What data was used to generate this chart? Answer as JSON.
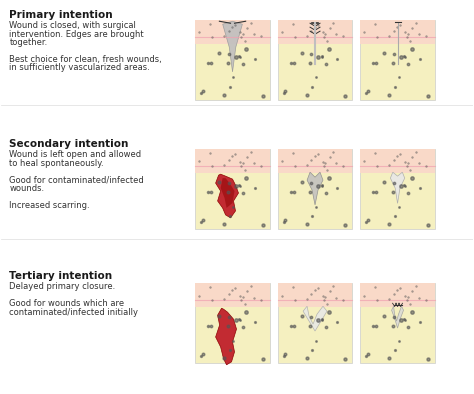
{
  "bg_color": "#ffffff",
  "skin_top_color": "#f9d9c8",
  "skin_mid_color": "#f5c4b0",
  "skin_pink_line": "#f0a0b0",
  "fat_color": "#f5f0c0",
  "dot_color": "#555555",
  "wound_red": "#c0202a",
  "wound_dark_red": "#8b0000",
  "wound_gray": "#c0bfbf",
  "wound_white": "#e8e8e8",
  "stitch_color": "#333333",
  "scar_color": "#d0d0d0",
  "sections": [
    {
      "title": "Primary intention",
      "title_bold": true,
      "lines": [
        "Wound is closed, with surgical",
        "intervention. Edges are brought",
        "together.",
        "",
        "Best choice for clean, fresh wounds,",
        "in sufficiently vascularized areas."
      ]
    },
    {
      "title": "Secondary intention",
      "title_bold": true,
      "lines": [
        "Wound is left open and allowed",
        "to heal spontaneously.",
        "",
        "Good for contaminated/infected",
        "wounds.",
        "",
        "Increased scarring."
      ]
    },
    {
      "title": "Tertiary intention",
      "title_bold": true,
      "lines": [
        "Delayed primary closure.",
        "",
        "Good for wounds which are",
        "contaminated/infected initially"
      ]
    }
  ],
  "figsize": [
    4.74,
    3.94
  ],
  "dpi": 100
}
